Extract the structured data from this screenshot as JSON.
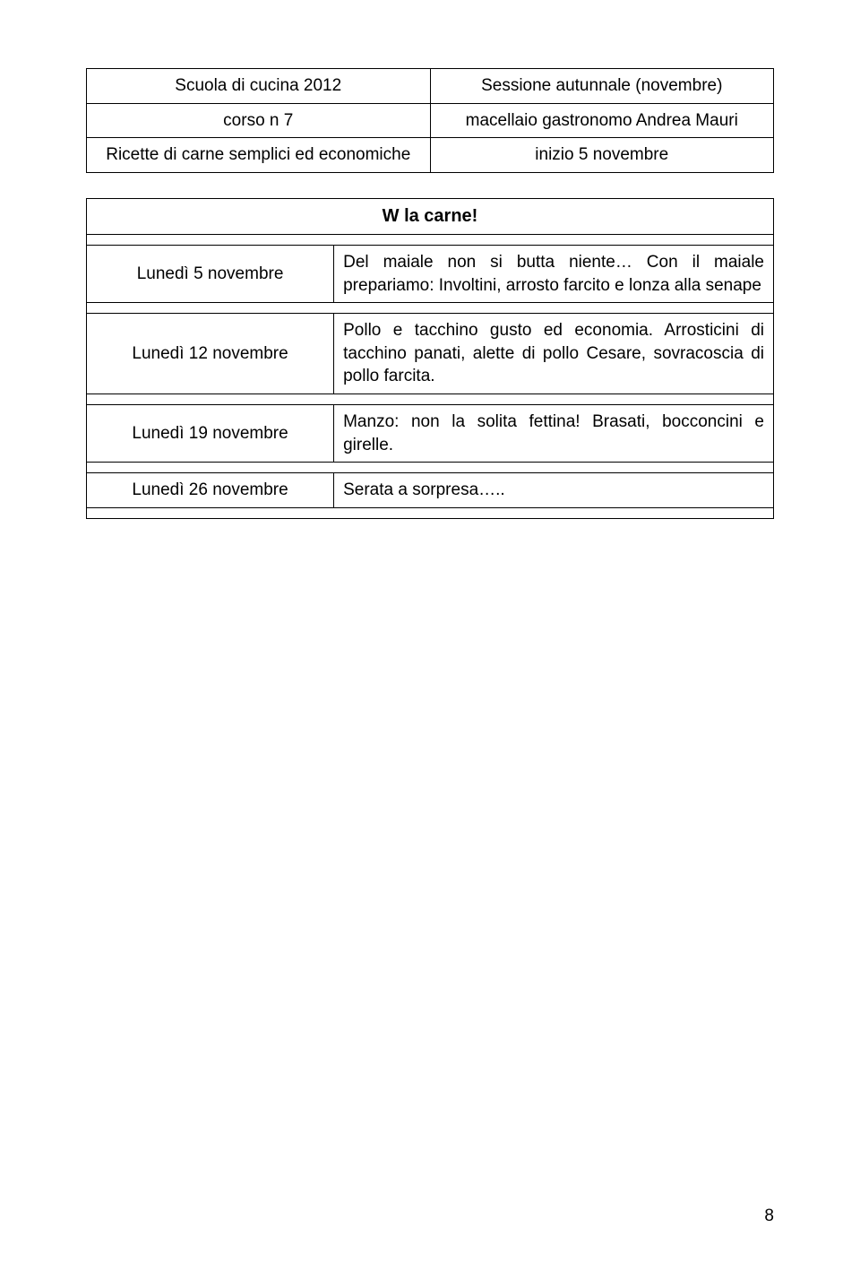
{
  "header": {
    "r1c1": "Scuola di cucina 2012",
    "r1c2": "Sessione autunnale (novembre)",
    "r2c1": "corso n 7",
    "r2c2": "macellaio gastronomo Andrea Mauri",
    "r3c1": "Ricette di carne semplici ed economiche",
    "r3c2": "inizio 5 novembre"
  },
  "title": "W la carne!",
  "rows": [
    {
      "left": "Lunedì 5 novembre",
      "right": "Del maiale non si butta niente… Con il maiale prepariamo: Involtini, arrosto farcito e lonza alla senape"
    },
    {
      "left": "Lunedì 12 novembre",
      "right": "Pollo e tacchino gusto ed economia. Arrosticini di tacchino panati, alette di pollo Cesare, sovracoscia di pollo farcita."
    },
    {
      "left": "Lunedì 19 novembre",
      "right": "Manzo: non la solita fettina! Brasati, bocconcini e girelle."
    },
    {
      "left": "Lunedì 26 novembre",
      "right": "Serata a sorpresa….."
    }
  ],
  "pageNumber": "8",
  "colors": {
    "background": "#ffffff",
    "text": "#000000",
    "border": "#000000"
  }
}
